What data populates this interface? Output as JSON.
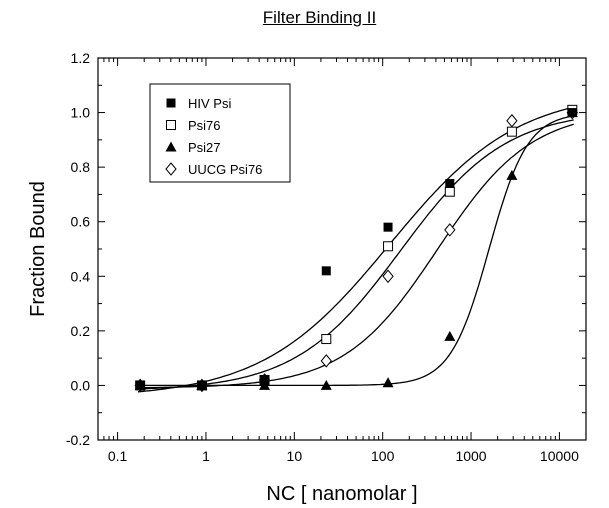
{
  "chart_data": {
    "type": "scatter",
    "title": "Filter Binding II",
    "xlabel": "NC  [ nanomolar ]",
    "ylabel": "Fraction  Bound",
    "xscale": "log",
    "xlim": [
      0.06,
      20000
    ],
    "ylim": [
      -0.2,
      1.2
    ],
    "xticks": [
      0.1,
      1,
      10,
      100,
      1000,
      10000
    ],
    "xtick_labels": [
      "0.1",
      "1",
      "10",
      "100",
      "1000",
      "10000"
    ],
    "yticks": [
      -0.2,
      0.0,
      0.2,
      0.4,
      0.6,
      0.8,
      1.0,
      1.2
    ],
    "ytick_labels": [
      "-0.2",
      "0.0",
      "0.2",
      "0.4",
      "0.6",
      "0.8",
      "1.0",
      "1.2"
    ],
    "legend_position": "top-left",
    "series": [
      {
        "name": "HIV Psi",
        "marker": "filled-square",
        "x": [
          0.18,
          0.9,
          4.6,
          23,
          115,
          575,
          14000
        ],
        "y": [
          0.0,
          0.0,
          0.02,
          0.42,
          0.58,
          0.74,
          1.0
        ],
        "fit": {
          "bottom": -0.045,
          "top": 1.08,
          "ec50": 120,
          "hill": 0.6
        }
      },
      {
        "name": "Psi76",
        "marker": "open-square",
        "x": [
          0.18,
          0.9,
          4.6,
          23,
          115,
          575,
          2900,
          14000
        ],
        "y": [
          0.0,
          0.0,
          0.02,
          0.17,
          0.51,
          0.71,
          0.93,
          1.01
        ],
        "fit": {
          "bottom": -0.02,
          "top": 1.01,
          "ec50": 160,
          "hill": 0.73
        }
      },
      {
        "name": "Psi27",
        "marker": "filled-triangle",
        "x": [
          0.18,
          0.9,
          4.6,
          23,
          115,
          575,
          2900,
          14000
        ],
        "y": [
          0.0,
          0.0,
          0.0,
          0.0,
          0.01,
          0.18,
          0.77,
          1.0
        ],
        "fit": {
          "bottom": 0.0,
          "top": 1.0,
          "ec50": 1600,
          "hill": 2.0
        }
      },
      {
        "name": "UUCG Psi76",
        "marker": "open-diamond",
        "x": [
          0.18,
          0.9,
          4.6,
          23,
          115,
          575,
          2900,
          14000
        ],
        "y": [
          0.0,
          0.0,
          0.02,
          0.09,
          0.4,
          0.57,
          0.97,
          1.0
        ],
        "fit": {
          "bottom": -0.01,
          "top": 1.01,
          "ec50": 420,
          "hill": 0.82
        }
      }
    ]
  }
}
